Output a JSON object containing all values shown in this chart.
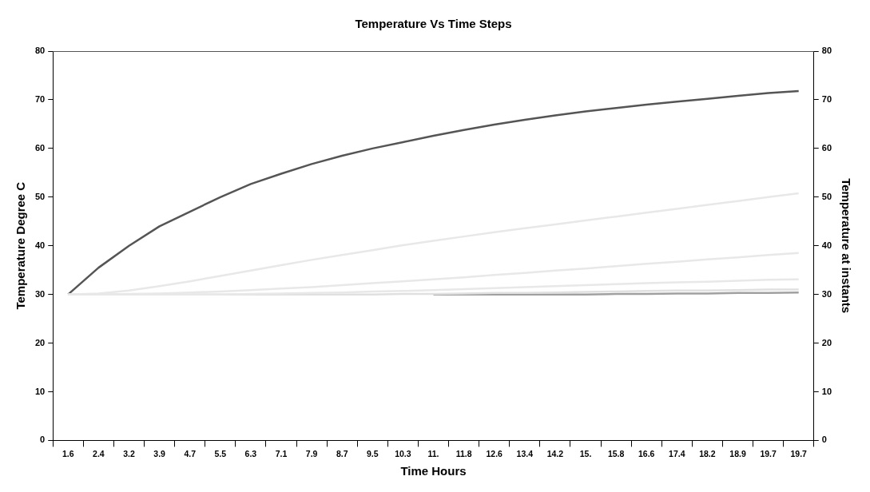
{
  "chart_data": {
    "type": "line",
    "title": "Temperature Vs Time Steps",
    "xlabel": "Time Hours",
    "ylabel": "Temperature Degree C",
    "y2label": "Temperature at instants",
    "categories": [
      "1.6",
      "2.4",
      "3.2",
      "3.9",
      "4.7",
      "5.5",
      "6.3",
      "7.1",
      "7.9",
      "8.7",
      "9.5",
      "10.3",
      "11.",
      "11.8",
      "12.6",
      "13.4",
      "14.2",
      "15.",
      "15.8",
      "16.6",
      "17.4",
      "18.2",
      "18.9",
      "19.7",
      "19.7"
    ],
    "series": [
      {
        "color": "#e8e8e8",
        "values": [
          30,
          30.2,
          30.8,
          31.7,
          32.7,
          33.8,
          34.9,
          36,
          37.1,
          38.1,
          39.1,
          40.1,
          41,
          41.9,
          42.8,
          43.6,
          44.4,
          45.2,
          46,
          46.8,
          47.6,
          48.4,
          49.2,
          50,
          50.8
        ]
      },
      {
        "color": "#e8e8e8",
        "values": [
          30,
          30,
          30.1,
          30.2,
          30.4,
          30.6,
          30.9,
          31.2,
          31.5,
          31.9,
          32.3,
          32.7,
          33.1,
          33.5,
          34,
          34.4,
          34.9,
          35.3,
          35.8,
          36.3,
          36.7,
          37.2,
          37.6,
          38.1,
          38.5
        ]
      },
      {
        "color": "#e8e8e8",
        "values": [
          30,
          30,
          30,
          30,
          30,
          30,
          30.1,
          30.2,
          30.3,
          30.4,
          30.6,
          30.7,
          30.9,
          31.1,
          31.3,
          31.5,
          31.7,
          31.9,
          32.1,
          32.3,
          32.5,
          32.6,
          32.8,
          33,
          33.1
        ]
      },
      {
        "color": "#e0e0e0",
        "values": [
          30,
          30,
          30,
          30,
          30,
          30,
          30,
          30,
          30,
          30,
          30,
          30.1,
          30.1,
          30.2,
          30.3,
          30.3,
          30.4,
          30.5,
          30.6,
          30.7,
          30.8,
          30.8,
          30.9,
          31,
          31
        ]
      },
      {
        "color": "#a0a0a0",
        "values": [
          null,
          null,
          null,
          null,
          null,
          null,
          null,
          null,
          null,
          null,
          null,
          null,
          30,
          30,
          30,
          30,
          30,
          30,
          30.1,
          30.1,
          30.2,
          30.2,
          30.3,
          30.3,
          30.4
        ]
      },
      {
        "color": "#555555",
        "values": [
          30,
          35.5,
          40,
          44,
          47,
          50,
          52.7,
          54.8,
          56.8,
          58.5,
          60,
          61.3,
          62.6,
          63.8,
          64.9,
          65.9,
          66.8,
          67.6,
          68.3,
          69,
          69.6,
          70.2,
          70.8,
          71.4,
          71.8
        ]
      }
    ],
    "ylim": [
      0,
      80
    ],
    "yticks": [
      0,
      10,
      20,
      30,
      40,
      50,
      60,
      70,
      80
    ],
    "y2lim": [
      0,
      80
    ],
    "y2ticks": [
      0,
      10,
      20,
      30,
      40,
      50,
      60,
      70,
      80
    ],
    "grid": false,
    "legend": false,
    "marker": "none",
    "line_style": "solid"
  }
}
